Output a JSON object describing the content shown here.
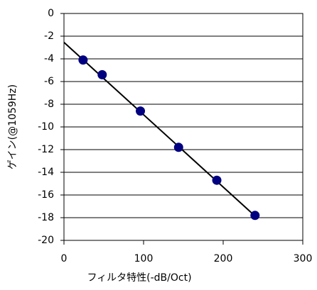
{
  "chart_data": {
    "type": "scatter",
    "x_label": "フィルタ特性(-dB/Oct)",
    "y_label": "ゲイン(@1059Hz)",
    "series": [
      {
        "color": "#000080",
        "x": [
          24,
          48,
          96,
          144,
          192,
          240
        ],
        "values": [
          -4.1,
          -5.4,
          -8.6,
          -11.8,
          -14.7,
          -17.8
        ]
      }
    ],
    "trendline": {
      "color": "#000000",
      "x": [
        0,
        240
      ],
      "values": [
        -2.55,
        -17.85
      ]
    },
    "xlim": [
      0,
      300
    ],
    "xticks": [
      0,
      100,
      200,
      300
    ],
    "ylim": [
      -20,
      0
    ],
    "yticks": [
      0,
      -2,
      -4,
      -6,
      -8,
      -10,
      -12,
      -14,
      -16,
      -18,
      -20
    ],
    "grid": true
  }
}
